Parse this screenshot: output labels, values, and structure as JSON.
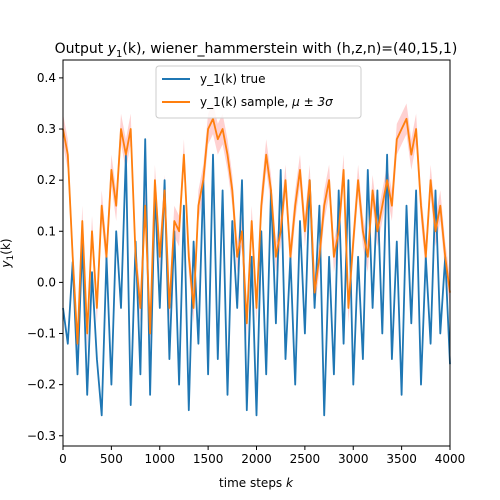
{
  "chart_data": {
    "type": "line",
    "title_prefix": "Output ",
    "title_math_base": "y",
    "title_math_sub": "1",
    "title_math_arg": "(k)",
    "title_suffix": ", wiener_hammerstein with (h,z,n)=(40,15,1)",
    "xlabel_text": "time steps ",
    "xlabel_math": "k",
    "ylabel_base": "y",
    "ylabel_sub": "1",
    "ylabel_arg": "(k)",
    "xlim": [
      0,
      4000
    ],
    "ylim": [
      -0.32,
      0.435
    ],
    "xticks": [
      0,
      500,
      1000,
      1500,
      2000,
      2500,
      3000,
      3500,
      4000
    ],
    "yticks": [
      -0.3,
      -0.2,
      -0.1,
      0.0,
      0.1,
      0.2,
      0.3,
      0.4
    ],
    "ytick_labels": [
      "−0.3",
      "−0.2",
      "−0.1",
      "0.0",
      "0.1",
      "0.2",
      "0.3",
      "0.4"
    ],
    "grid": false,
    "legend_position": "top-center",
    "series": [
      {
        "name": "y_1(k) true",
        "color": "#1f77b4",
        "x": [
          0,
          50,
          100,
          150,
          200,
          250,
          300,
          350,
          400,
          450,
          500,
          550,
          600,
          650,
          700,
          750,
          800,
          850,
          900,
          950,
          1000,
          1050,
          1100,
          1150,
          1200,
          1250,
          1300,
          1350,
          1400,
          1450,
          1500,
          1550,
          1600,
          1650,
          1700,
          1750,
          1800,
          1850,
          1900,
          1950,
          2000,
          2050,
          2100,
          2150,
          2200,
          2250,
          2300,
          2350,
          2400,
          2450,
          2500,
          2550,
          2600,
          2650,
          2700,
          2750,
          2800,
          2850,
          2900,
          2950,
          3000,
          3050,
          3100,
          3150,
          3200,
          3250,
          3300,
          3350,
          3400,
          3450,
          3500,
          3550,
          3600,
          3650,
          3700,
          3750,
          3800,
          3850,
          3900,
          3950,
          4000
        ],
        "values": [
          -0.05,
          -0.12,
          0.04,
          -0.18,
          0.08,
          -0.22,
          0.02,
          -0.15,
          -0.26,
          0.05,
          -0.2,
          0.1,
          -0.05,
          0.25,
          -0.24,
          0.08,
          -0.18,
          0.28,
          -0.22,
          0.18,
          -0.05,
          0.2,
          -0.15,
          0.1,
          -0.2,
          0.15,
          -0.25,
          0.08,
          -0.12,
          0.2,
          -0.18,
          0.25,
          -0.15,
          0.18,
          -0.22,
          0.12,
          -0.05,
          0.2,
          -0.25,
          0.05,
          -0.26,
          0.1,
          -0.18,
          0.18,
          -0.08,
          0.22,
          -0.15,
          0.05,
          -0.2,
          0.12,
          -0.1,
          0.2,
          -0.05,
          0.15,
          -0.26,
          0.05,
          -0.18,
          0.18,
          -0.12,
          0.2,
          -0.2,
          0.05,
          -0.15,
          0.22,
          -0.05,
          0.18,
          -0.1,
          0.25,
          -0.15,
          0.08,
          -0.22,
          0.15,
          -0.08,
          0.18,
          -0.2,
          0.05,
          -0.12,
          0.18,
          -0.1,
          0.05,
          -0.16
        ]
      },
      {
        "name": "y_1(k) sample, ",
        "name_math": "μ ± 3σ",
        "color": "#ff7f0e",
        "band_color": "#ff9999",
        "band_halfwidth": 0.03,
        "x": [
          0,
          50,
          100,
          150,
          200,
          250,
          300,
          350,
          400,
          450,
          500,
          550,
          600,
          650,
          700,
          750,
          800,
          850,
          900,
          950,
          1000,
          1050,
          1100,
          1150,
          1200,
          1250,
          1300,
          1350,
          1400,
          1450,
          1500,
          1550,
          1600,
          1650,
          1700,
          1750,
          1800,
          1850,
          1900,
          1950,
          2000,
          2050,
          2100,
          2150,
          2200,
          2250,
          2300,
          2350,
          2400,
          2450,
          2500,
          2550,
          2600,
          2650,
          2700,
          2750,
          2800,
          2850,
          2900,
          2950,
          3000,
          3050,
          3100,
          3150,
          3200,
          3250,
          3300,
          3350,
          3400,
          3450,
          3500,
          3550,
          3600,
          3650,
          3700,
          3750,
          3800,
          3850,
          3900,
          3950,
          4000
        ],
        "values": [
          0.3,
          0.25,
          0.05,
          -0.12,
          0.12,
          -0.1,
          0.1,
          -0.05,
          0.15,
          0.05,
          0.22,
          0.15,
          0.3,
          0.25,
          0.3,
          0.05,
          -0.05,
          0.15,
          -0.1,
          0.2,
          0.05,
          0.18,
          -0.05,
          0.12,
          0.1,
          0.25,
          0.05,
          -0.05,
          0.15,
          0.2,
          0.3,
          0.32,
          0.28,
          0.3,
          0.25,
          0.18,
          0.05,
          0.1,
          -0.08,
          0.12,
          -0.05,
          0.15,
          0.25,
          0.18,
          0.05,
          0.1,
          0.2,
          0.05,
          0.15,
          0.22,
          0.1,
          0.2,
          -0.02,
          0.05,
          0.15,
          0.2,
          0.05,
          0.1,
          0.22,
          -0.05,
          0.08,
          0.2,
          0.1,
          0.05,
          0.18,
          0.1,
          0.15,
          0.2,
          0.15,
          0.28,
          0.3,
          0.32,
          0.25,
          0.3,
          0.15,
          0.05,
          0.2,
          0.1,
          0.15,
          0.05,
          -0.02
        ]
      }
    ]
  }
}
